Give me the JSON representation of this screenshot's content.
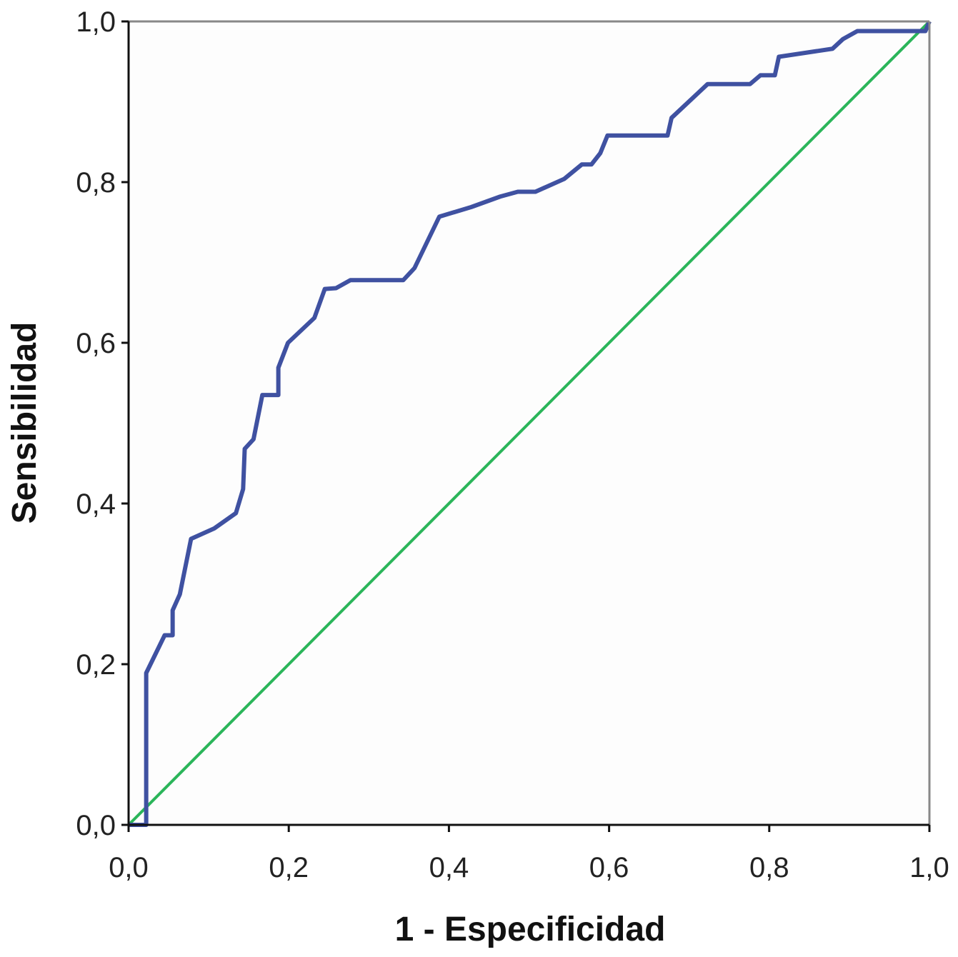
{
  "chart_data": {
    "type": "line",
    "title": "",
    "xlabel": "1 - Especificidad",
    "ylabel": "Sensibilidad",
    "xlim": [
      0,
      1
    ],
    "ylim": [
      0,
      1
    ],
    "xticks": [
      "0,0",
      "0,2",
      "0,4",
      "0,6",
      "0,8",
      "1,0"
    ],
    "yticks": [
      "0,0",
      "0,2",
      "0,4",
      "0,6",
      "0,8",
      "1,0"
    ],
    "xtick_values": [
      0,
      0.2,
      0.4,
      0.6,
      0.8,
      1.0
    ],
    "ytick_values": [
      0,
      0.2,
      0.4,
      0.6,
      0.8,
      1.0
    ],
    "grid": false,
    "legend": "none",
    "series": [
      {
        "color": "#3f51a1",
        "x": [
          0,
          0.022,
          0.022,
          0.045,
          0.055,
          0.055,
          0.064,
          0.078,
          0.107,
          0.134,
          0.143,
          0.145,
          0.156,
          0.167,
          0.187,
          0.187,
          0.199,
          0.232,
          0.245,
          0.259,
          0.277,
          0.343,
          0.357,
          0.388,
          0.428,
          0.464,
          0.486,
          0.508,
          0.544,
          0.566,
          0.578,
          0.589,
          0.598,
          0.673,
          0.678,
          0.723,
          0.776,
          0.789,
          0.807,
          0.812,
          0.879,
          0.892,
          0.91,
          0.995,
          1.0
        ],
        "y": [
          0,
          0,
          0.189,
          0.236,
          0.236,
          0.267,
          0.287,
          0.356,
          0.369,
          0.388,
          0.418,
          0.468,
          0.48,
          0.535,
          0.535,
          0.569,
          0.6,
          0.631,
          0.667,
          0.668,
          0.678,
          0.678,
          0.693,
          0.757,
          0.769,
          0.782,
          0.788,
          0.788,
          0.804,
          0.822,
          0.822,
          0.836,
          0.858,
          0.858,
          0.88,
          0.922,
          0.922,
          0.933,
          0.933,
          0.956,
          0.966,
          0.978,
          0.988,
          0.988,
          1.0
        ]
      },
      {
        "color": "#2bb55a",
        "x": [
          0,
          1
        ],
        "y": [
          0,
          1
        ]
      }
    ]
  }
}
